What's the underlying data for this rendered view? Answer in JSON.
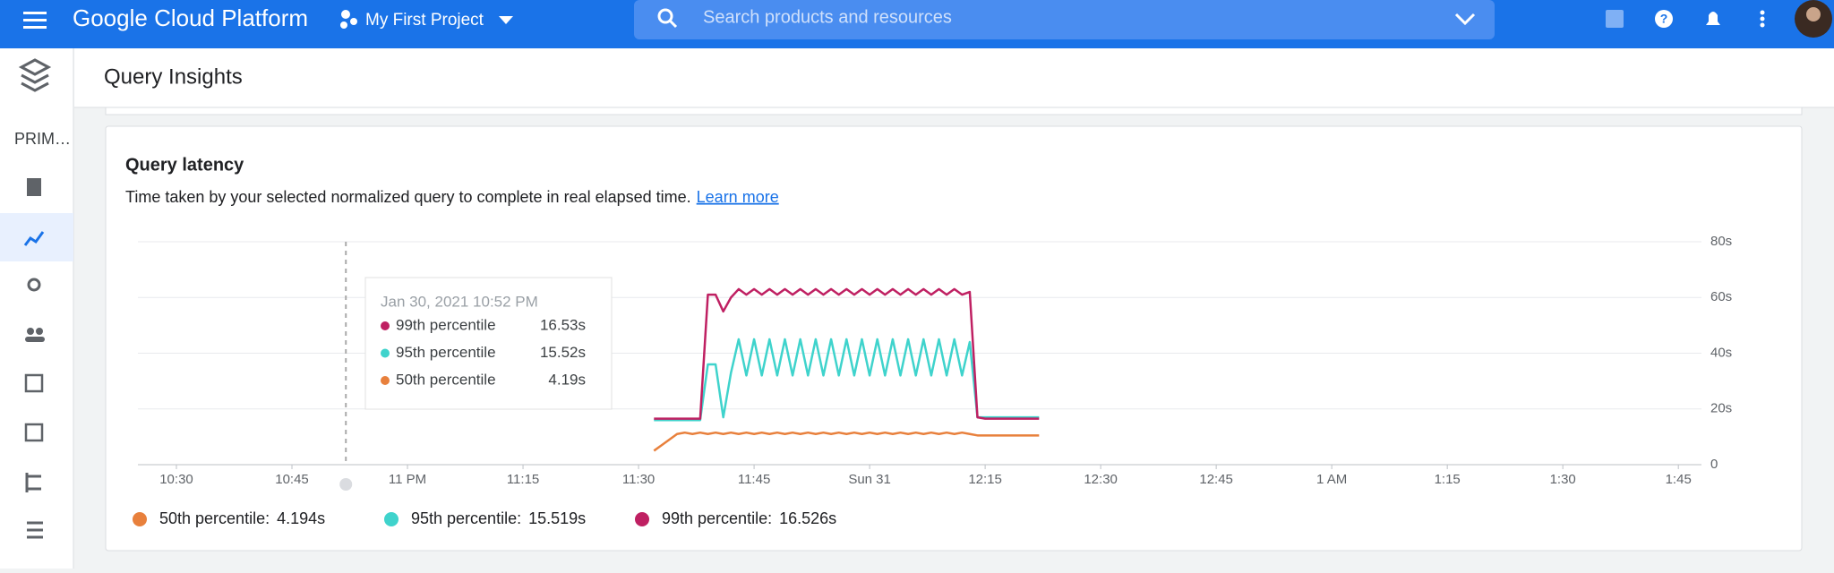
{
  "header": {
    "product": "Google Cloud Platform",
    "project": "My First Project",
    "search_placeholder": "Search products and resources"
  },
  "page_title": "Query Insights",
  "sidebar": {
    "section": "PRIM…"
  },
  "card": {
    "title": "Query latency",
    "description": "Time taken by your selected normalized query to complete in real elapsed time.",
    "link": "Learn more"
  },
  "chart_data": {
    "type": "line",
    "x": [
      62,
      63,
      64,
      65,
      66,
      67,
      68,
      69,
      70,
      71,
      72,
      73,
      74,
      75,
      76,
      77,
      78,
      79,
      80,
      81,
      82,
      83,
      84,
      85,
      86,
      87,
      88,
      89,
      90,
      91,
      92,
      93,
      94,
      95,
      96,
      97,
      98,
      99,
      100,
      101,
      102,
      103,
      104,
      105,
      106,
      107,
      108,
      109,
      110,
      111,
      112
    ],
    "series": [
      {
        "name": "50th percentile",
        "color": "#e8803c",
        "values": [
          5,
          7,
          9,
          11,
          11.5,
          11,
          11.5,
          11,
          11.5,
          11,
          11.5,
          11,
          11.5,
          11,
          11.5,
          11,
          11.5,
          11,
          11.5,
          11,
          11.5,
          11,
          11.5,
          11,
          11.5,
          11,
          11.5,
          11,
          11.5,
          11,
          11.5,
          11,
          11.5,
          11,
          11.5,
          11,
          11.5,
          11,
          11.5,
          11,
          11.5,
          11,
          10.5,
          10.5,
          10.5,
          10.5,
          10.5,
          10.5,
          10.5,
          10.5,
          10.5
        ]
      },
      {
        "name": "95th percentile",
        "color": "#3fd3cc",
        "values": [
          16,
          16,
          16,
          16,
          16,
          16,
          16,
          36,
          36,
          17,
          33,
          45,
          32,
          45,
          32,
          45,
          32,
          45,
          32,
          45,
          32,
          45,
          32,
          45,
          32,
          45,
          32,
          45,
          32,
          45,
          32,
          45,
          32,
          45,
          32,
          45,
          32,
          45,
          32,
          45,
          32,
          44,
          17,
          17,
          17,
          17,
          17,
          17,
          17,
          17,
          17
        ]
      },
      {
        "name": "99th percentile",
        "color": "#bf2062",
        "values": [
          16.5,
          16.5,
          16.5,
          16.5,
          16.5,
          16.5,
          16.5,
          61,
          61,
          55,
          60,
          63,
          61,
          63,
          61,
          63,
          61,
          63,
          61,
          63,
          61,
          63,
          61,
          63,
          61,
          63,
          61,
          63,
          61,
          63,
          61,
          63,
          61,
          63,
          61,
          63,
          61,
          63,
          61,
          63,
          61,
          62,
          17,
          16.5,
          16.5,
          16.5,
          16.5,
          16.5,
          16.5,
          16.5,
          16.5
        ]
      }
    ],
    "xlim": [
      -5,
      198
    ],
    "xticks": [
      {
        "value": 0,
        "label": "10:30"
      },
      {
        "value": 15,
        "label": "10:45"
      },
      {
        "value": 30,
        "label": "11 PM"
      },
      {
        "value": 45,
        "label": "11:15"
      },
      {
        "value": 60,
        "label": "11:30"
      },
      {
        "value": 75,
        "label": "11:45"
      },
      {
        "value": 90,
        "label": "Sun 31"
      },
      {
        "value": 105,
        "label": "12:15"
      },
      {
        "value": 120,
        "label": "12:30"
      },
      {
        "value": 135,
        "label": "12:45"
      },
      {
        "value": 150,
        "label": "1 AM"
      },
      {
        "value": 165,
        "label": "1:15"
      },
      {
        "value": 180,
        "label": "1:30"
      },
      {
        "value": 195,
        "label": "1:45"
      }
    ],
    "ylim": [
      0,
      80
    ],
    "yticks": [
      0,
      {
        "value": 20,
        "label": "20s"
      },
      {
        "value": 40,
        "label": "40s"
      },
      {
        "value": 60,
        "label": "60s"
      },
      {
        "value": 80,
        "label": "80s"
      }
    ],
    "grid": true,
    "cursor_x": 22
  },
  "tooltip": {
    "title": "Jan 30, 2021 10:52 PM",
    "rows": [
      {
        "value": "16.53s"
      },
      {
        "value": "15.52s"
      },
      {
        "value": "4.19s"
      }
    ]
  },
  "legend": [
    {
      "name": "50th percentile:",
      "value": "4.194s"
    },
    {
      "name": "95th percentile:",
      "value": "15.519s"
    },
    {
      "name": "99th percentile:",
      "value": "16.526s"
    }
  ]
}
